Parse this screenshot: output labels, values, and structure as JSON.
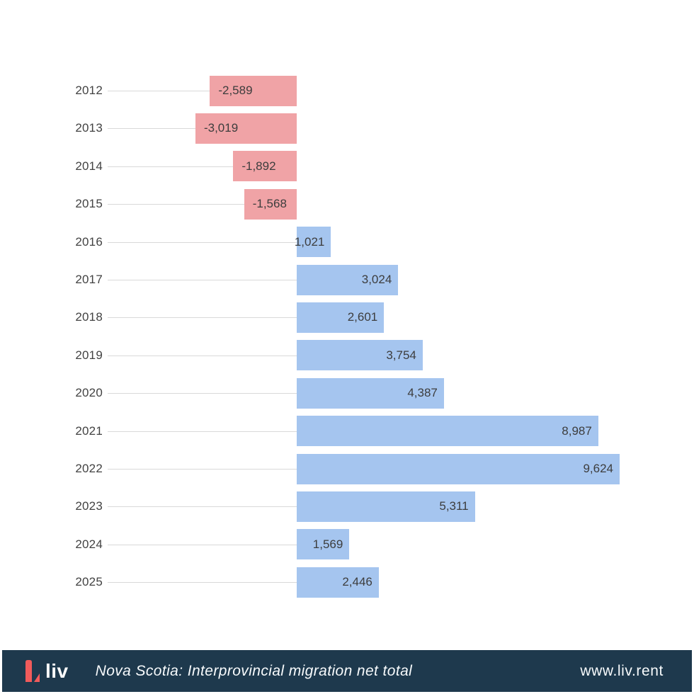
{
  "chart_data": {
    "type": "bar",
    "orientation": "horizontal",
    "categories": [
      "2012",
      "2013",
      "2014",
      "2015",
      "2016",
      "2017",
      "2018",
      "2019",
      "2020",
      "2021",
      "2022",
      "2023",
      "2024",
      "2025"
    ],
    "values": [
      -2589,
      -3019,
      -1892,
      -1568,
      1021,
      3024,
      2601,
      3754,
      4387,
      8987,
      9624,
      5311,
      1569,
      2446
    ],
    "value_labels": [
      "-2,589",
      "-3,019",
      "-1,892",
      "-1,568",
      "1,021",
      "3,024",
      "2,601",
      "3,754",
      "4,387",
      "8,987",
      "9,624",
      "5,311",
      "1,569",
      "2,446"
    ],
    "title": "Nova Scotia: Interprovincial migration net total",
    "xlabel": "",
    "ylabel": "",
    "xlim": [
      -3019,
      9624
    ],
    "grid": "per-row horizontal guide lines from category label to zero baseline",
    "legend": null,
    "value_label_position": "inside-end",
    "colors": {
      "positive_bar": "#a5c5ef",
      "negative_bar": "#f0a3a6",
      "grid_line": "#d9d9d9",
      "tick_text": "#424242",
      "value_text": "#3d3d3d"
    }
  },
  "footer": {
    "brand_text": "liv",
    "title": "Nova Scotia: Interprovincial migration net total",
    "website": "www.liv.rent",
    "background_color": "#1e394d",
    "logo_mark_color": "#f15b5b",
    "text_color": "#f7fafc"
  }
}
